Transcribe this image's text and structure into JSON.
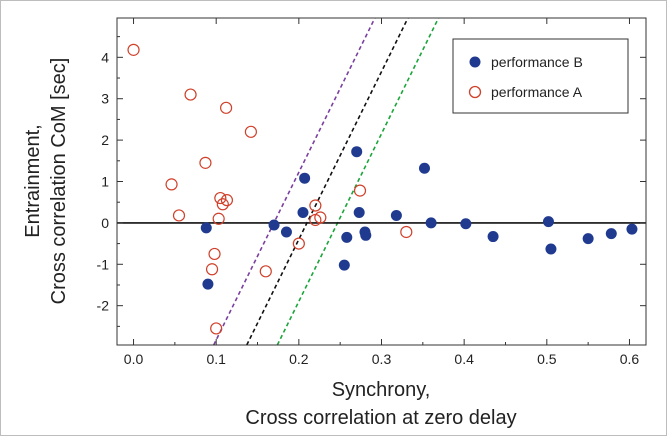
{
  "chart_data": {
    "type": "scatter",
    "xlabel_lines": [
      "Synchrony,",
      "Cross correlation at zero delay"
    ],
    "ylabel_lines": [
      "Entrainment,",
      "Cross correlation CoM [sec]"
    ],
    "xlim": [
      -0.02,
      0.62
    ],
    "ylim": [
      -2.95,
      4.95
    ],
    "xticks": [
      0.0,
      0.1,
      0.2,
      0.3,
      0.4,
      0.5,
      0.6
    ],
    "xtick_labels": [
      "0.0",
      "0.1",
      "0.2",
      "0.3",
      "0.4",
      "0.5",
      "0.6"
    ],
    "yticks": [
      -2,
      -1,
      0,
      1,
      2,
      3,
      4
    ],
    "ytick_labels": [
      "-2",
      "-1",
      "0",
      "1",
      "2",
      "3",
      "4"
    ],
    "zero_line": 0,
    "legend_position": "top-right",
    "series": [
      {
        "name": "performance B",
        "marker": "filled-circle",
        "color": "#1f3a8f",
        "points": [
          [
            0.088,
            -0.12
          ],
          [
            0.09,
            -1.48
          ],
          [
            0.17,
            -0.05
          ],
          [
            0.185,
            -0.22
          ],
          [
            0.205,
            0.25
          ],
          [
            0.207,
            1.08
          ],
          [
            0.255,
            -1.02
          ],
          [
            0.258,
            -0.35
          ],
          [
            0.27,
            1.72
          ],
          [
            0.273,
            0.25
          ],
          [
            0.28,
            -0.22
          ],
          [
            0.281,
            -0.3
          ],
          [
            0.318,
            0.18
          ],
          [
            0.352,
            1.32
          ],
          [
            0.36,
            0.0
          ],
          [
            0.402,
            -0.02
          ],
          [
            0.435,
            -0.33
          ],
          [
            0.502,
            0.03
          ],
          [
            0.505,
            -0.63
          ],
          [
            0.55,
            -0.38
          ],
          [
            0.578,
            -0.26
          ],
          [
            0.603,
            -0.15
          ]
        ]
      },
      {
        "name": "performance A",
        "marker": "open-circle",
        "color": "#d0402a",
        "points": [
          [
            0.0,
            4.18
          ],
          [
            0.046,
            0.93
          ],
          [
            0.055,
            0.18
          ],
          [
            0.069,
            3.1
          ],
          [
            0.087,
            1.45
          ],
          [
            0.095,
            -1.12
          ],
          [
            0.098,
            -0.75
          ],
          [
            0.1,
            -2.55
          ],
          [
            0.103,
            0.1
          ],
          [
            0.105,
            0.6
          ],
          [
            0.108,
            0.45
          ],
          [
            0.112,
            2.78
          ],
          [
            0.113,
            0.55
          ],
          [
            0.142,
            2.2
          ],
          [
            0.16,
            -1.17
          ],
          [
            0.2,
            -0.5
          ],
          [
            0.22,
            0.42
          ],
          [
            0.22,
            0.07
          ],
          [
            0.226,
            0.13
          ],
          [
            0.274,
            0.78
          ],
          [
            0.33,
            -0.22
          ]
        ]
      }
    ],
    "reference_lines": [
      {
        "color": "#7b3fa0",
        "style": "dashed",
        "points": [
          [
            0.097,
            -2.95
          ],
          [
            0.292,
            4.95
          ]
        ]
      },
      {
        "color": "#111111",
        "style": "dashed",
        "points": [
          [
            0.137,
            -2.95
          ],
          [
            0.332,
            4.95
          ]
        ]
      },
      {
        "color": "#1aa53a",
        "style": "dashed",
        "points": [
          [
            0.174,
            -2.95
          ],
          [
            0.369,
            4.95
          ]
        ]
      }
    ]
  }
}
